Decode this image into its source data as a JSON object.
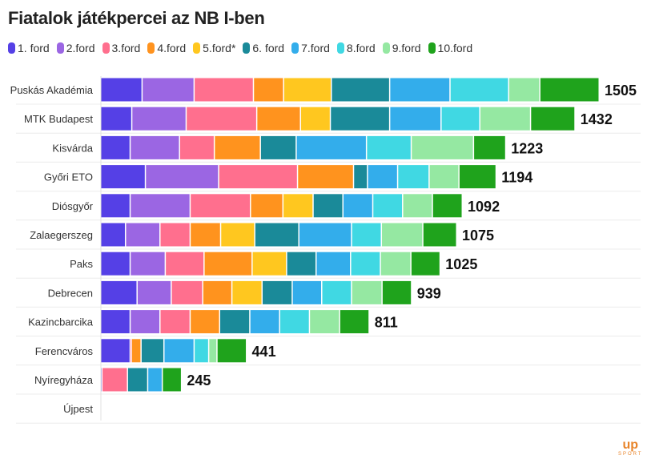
{
  "chart_data": {
    "type": "bar",
    "orientation": "horizontal",
    "stacked": true,
    "title": "Fiatalok játékpercei az NB I-ben",
    "xlabel": "",
    "ylabel": "",
    "xlim": [
      0,
      1505
    ],
    "grid": true,
    "legend_position": "top-left",
    "series": [
      {
        "name": "1. ford",
        "color": "#5540e6",
        "values": [
          126,
          95,
          90,
          136,
          90,
          76,
          90,
          111,
          90,
          90,
          5,
          0
        ]
      },
      {
        "name": "2.ford",
        "color": "#9b66e3",
        "values": [
          157,
          164,
          149,
          221,
          181,
          104,
          106,
          103,
          90,
          0,
          0,
          0
        ]
      },
      {
        "name": "3.ford",
        "color": "#ff6f8e",
        "values": [
          179,
          213,
          105,
          238,
          182,
          91,
          117,
          95,
          91,
          4,
          77,
          0
        ]
      },
      {
        "name": "4.ford",
        "color": "#ff931e",
        "values": [
          91,
          132,
          139,
          169,
          98,
          92,
          145,
          88,
          89,
          29,
          0,
          0
        ]
      },
      {
        "name": "5.ford*",
        "color": "#ffc71f",
        "values": [
          144,
          90,
          0,
          0,
          91,
          103,
          104,
          91,
          0,
          0,
          0,
          0
        ]
      },
      {
        "name": "6. ford",
        "color": "#1a8a99",
        "values": [
          176,
          179,
          108,
          42,
          90,
          133,
          89,
          91,
          91,
          69,
          61,
          0
        ]
      },
      {
        "name": "7.ford",
        "color": "#33adeb",
        "values": [
          182,
          155,
          212,
          91,
          90,
          159,
          104,
          89,
          90,
          91,
          44,
          0
        ]
      },
      {
        "name": "8.ford",
        "color": "#40d8e3",
        "values": [
          177,
          117,
          135,
          95,
          90,
          90,
          90,
          90,
          90,
          44,
          0,
          0
        ]
      },
      {
        "name": "9.ford",
        "color": "#95e8a2",
        "values": [
          94,
          153,
          188,
          90,
          90,
          125,
          92,
          92,
          91,
          25,
          0,
          0
        ]
      },
      {
        "name": "10.ford",
        "color": "#1fa31c",
        "values": [
          179,
          134,
          97,
          112,
          90,
          102,
          88,
          89,
          89,
          89,
          58,
          0
        ]
      }
    ],
    "categories": [
      "Puskás Akadémia",
      "MTK Budapest",
      "Kisvárda",
      "Győri ETO",
      "Diósgyőr",
      "Zalaegerszeg",
      "Paks",
      "Debrecen",
      "Kazincbarcika",
      "Ferencváros",
      "Nyíregyháza",
      "Újpest"
    ],
    "totals": [
      "1505",
      "1432",
      "1223",
      "1194",
      "1092",
      "1075",
      "1025",
      "939",
      "811",
      "441",
      "245",
      ""
    ]
  },
  "logo": {
    "main": "up",
    "sub": "SPORT"
  }
}
